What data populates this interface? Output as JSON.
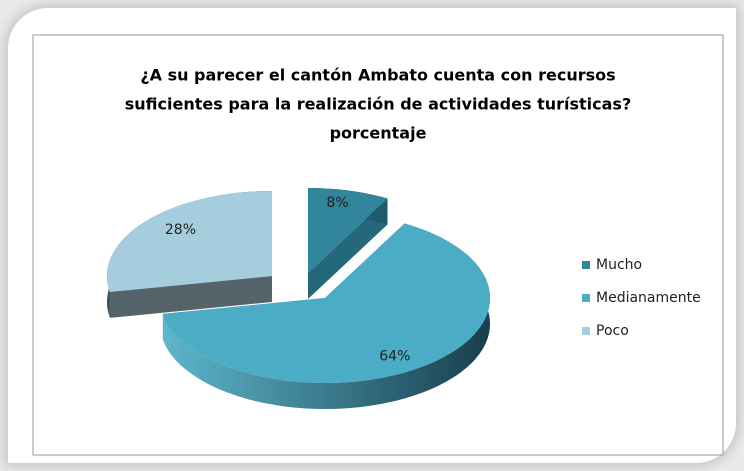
{
  "chart_data": {
    "type": "pie",
    "title": [
      "¿A su parecer el cantón Ambato cuenta con recursos",
      "suficientes para la realización de actividades turísticas?",
      "porcentaje"
    ],
    "categories": [
      "Mucho",
      "Medianamente",
      "Poco"
    ],
    "values": [
      8,
      64,
      28
    ],
    "value_labels": [
      "8%",
      "64%",
      "28%"
    ],
    "colors": [
      "#31859c",
      "#4bacc6",
      "#a5cddd"
    ],
    "legend": "right"
  }
}
